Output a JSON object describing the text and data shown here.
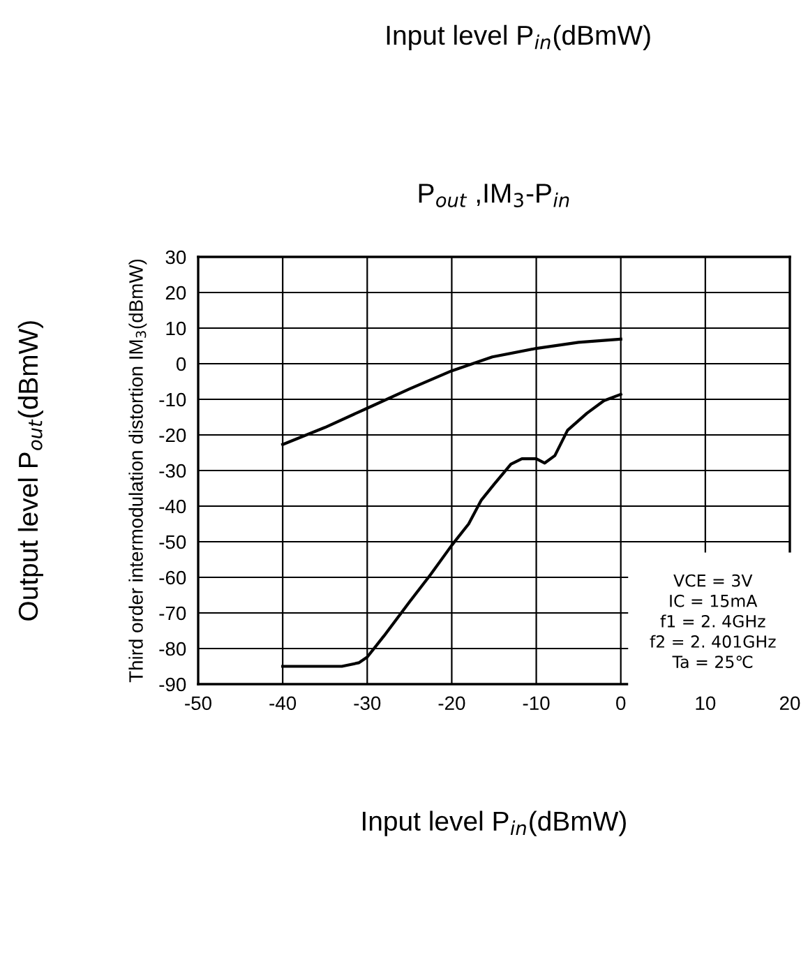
{
  "chart_data": {
    "type": "line",
    "title": "P$_{out}$ ,IM$_{3}$-P$_{in}$",
    "x2label": "Input level P$_{in}$(dBmW)",
    "xlabel": "Input level P$_{in}$(dBmW)",
    "ylabel": "Output level P$_{out}$(dBmW)",
    "y2label": "Third order intermodulation distortion IM$_{3}$(dBmW)",
    "xlim": [
      -50,
      20
    ],
    "xticks": [
      -50,
      -40,
      -30,
      -20,
      -10,
      0,
      10,
      20
    ],
    "ylim": [
      -90,
      30
    ],
    "yticks": [
      -90,
      -80,
      -70,
      -60,
      -50,
      -40,
      -30,
      -20,
      -10,
      0,
      10,
      20,
      30
    ],
    "grid": true,
    "legend": false,
    "series": [
      {
        "color": "#000000",
        "x": [
          -40,
          -35,
          -30,
          -25,
          -20,
          -15.2,
          -10,
          -5,
          0
        ],
        "values": [
          -22.7,
          -17.9,
          -12.5,
          -7.1,
          -2,
          1.9,
          4.3,
          6,
          6.9
        ]
      },
      {
        "color": "#000000",
        "x": [
          -40,
          -33,
          -31,
          -30,
          -28,
          -25,
          -22.5,
          -20,
          -18,
          -16.5,
          -15,
          -13,
          -11.7,
          -10,
          -9,
          -7.8,
          -6.3,
          -4,
          -2,
          0
        ],
        "values": [
          -85,
          -85,
          -84,
          -82.4,
          -76.4,
          -66.9,
          -59.2,
          -51,
          -45,
          -38.3,
          -33.9,
          -28.2,
          -26.7,
          -26.7,
          -27.9,
          -25.8,
          -18.7,
          -13.9,
          -10.4,
          -8.6
        ]
      }
    ],
    "annotations": [
      "VCE = 3V\nIC = 15mA\nf1 = 2. 4GHz\nf2 = 2. 401GHz\nTa = 25℃"
    ]
  }
}
